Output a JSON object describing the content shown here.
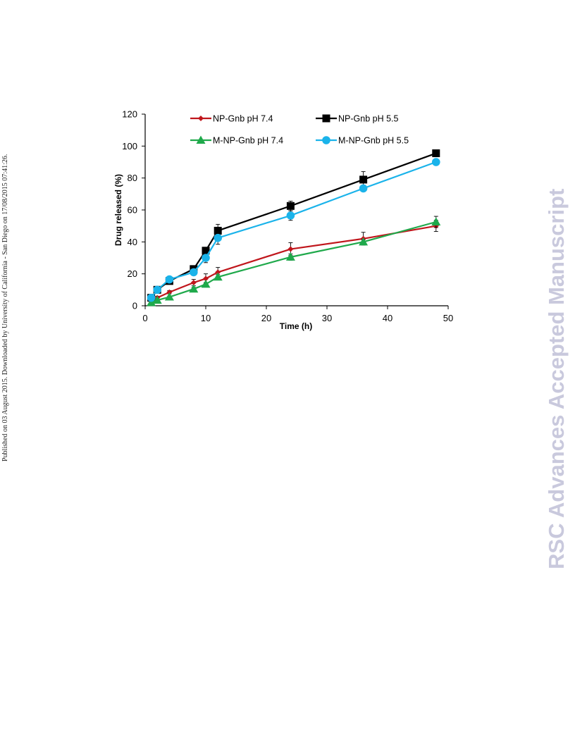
{
  "side_note": "Published on 03 August 2015. Downloaded by University of California - San Diego on 17/08/2015 07:41:26.",
  "watermark": "RSC Advances Accepted Manuscript",
  "chart_data": {
    "type": "line",
    "title": "",
    "xlabel": "Time (h)",
    "ylabel": "Drug released (%)",
    "xlim": [
      0,
      50
    ],
    "ylim": [
      0,
      120
    ],
    "xticks": [
      0,
      10,
      20,
      30,
      40,
      50
    ],
    "yticks": [
      0,
      20,
      40,
      60,
      80,
      100,
      120
    ],
    "grid": false,
    "legend": "top, two columns",
    "x": [
      1,
      2,
      4,
      8,
      10,
      12,
      24,
      36,
      48
    ],
    "series": [
      {
        "name": "NP-Gnb pH 7.4",
        "color": "#c0161c",
        "marker": "diamond",
        "values": [
          3,
          5,
          8.5,
          14.5,
          17,
          21,
          35.5,
          42,
          50
        ],
        "errors": [
          1,
          1,
          1,
          2,
          3,
          3,
          4,
          4,
          3.5
        ]
      },
      {
        "name": "NP-Gnb pH 5.5",
        "color": "#000000",
        "marker": "square",
        "values": [
          5,
          10,
          15.5,
          23,
          34.5,
          47,
          62.5,
          79,
          95.5
        ],
        "errors": [
          1,
          1.5,
          1.5,
          1.5,
          2,
          4,
          3,
          5,
          1.5
        ]
      },
      {
        "name": "M-NP-Gnb pH 7.4",
        "color": "#1fa94b",
        "marker": "triangle",
        "values": [
          2,
          3.5,
          5.5,
          10.5,
          13.5,
          18,
          30.5,
          40,
          52.5
        ],
        "errors": [
          0.5,
          0.5,
          0.5,
          1,
          1,
          1.5,
          2,
          1.5,
          3.5
        ]
      },
      {
        "name": "M-NP-Gnb pH 5.5",
        "color": "#1ab3ea",
        "marker": "circle",
        "values": [
          5,
          10,
          16.5,
          21,
          30,
          42.5,
          56.5,
          73.5,
          90
        ],
        "errors": [
          1,
          1,
          1,
          2,
          3,
          4,
          3,
          2,
          1
        ]
      }
    ]
  }
}
